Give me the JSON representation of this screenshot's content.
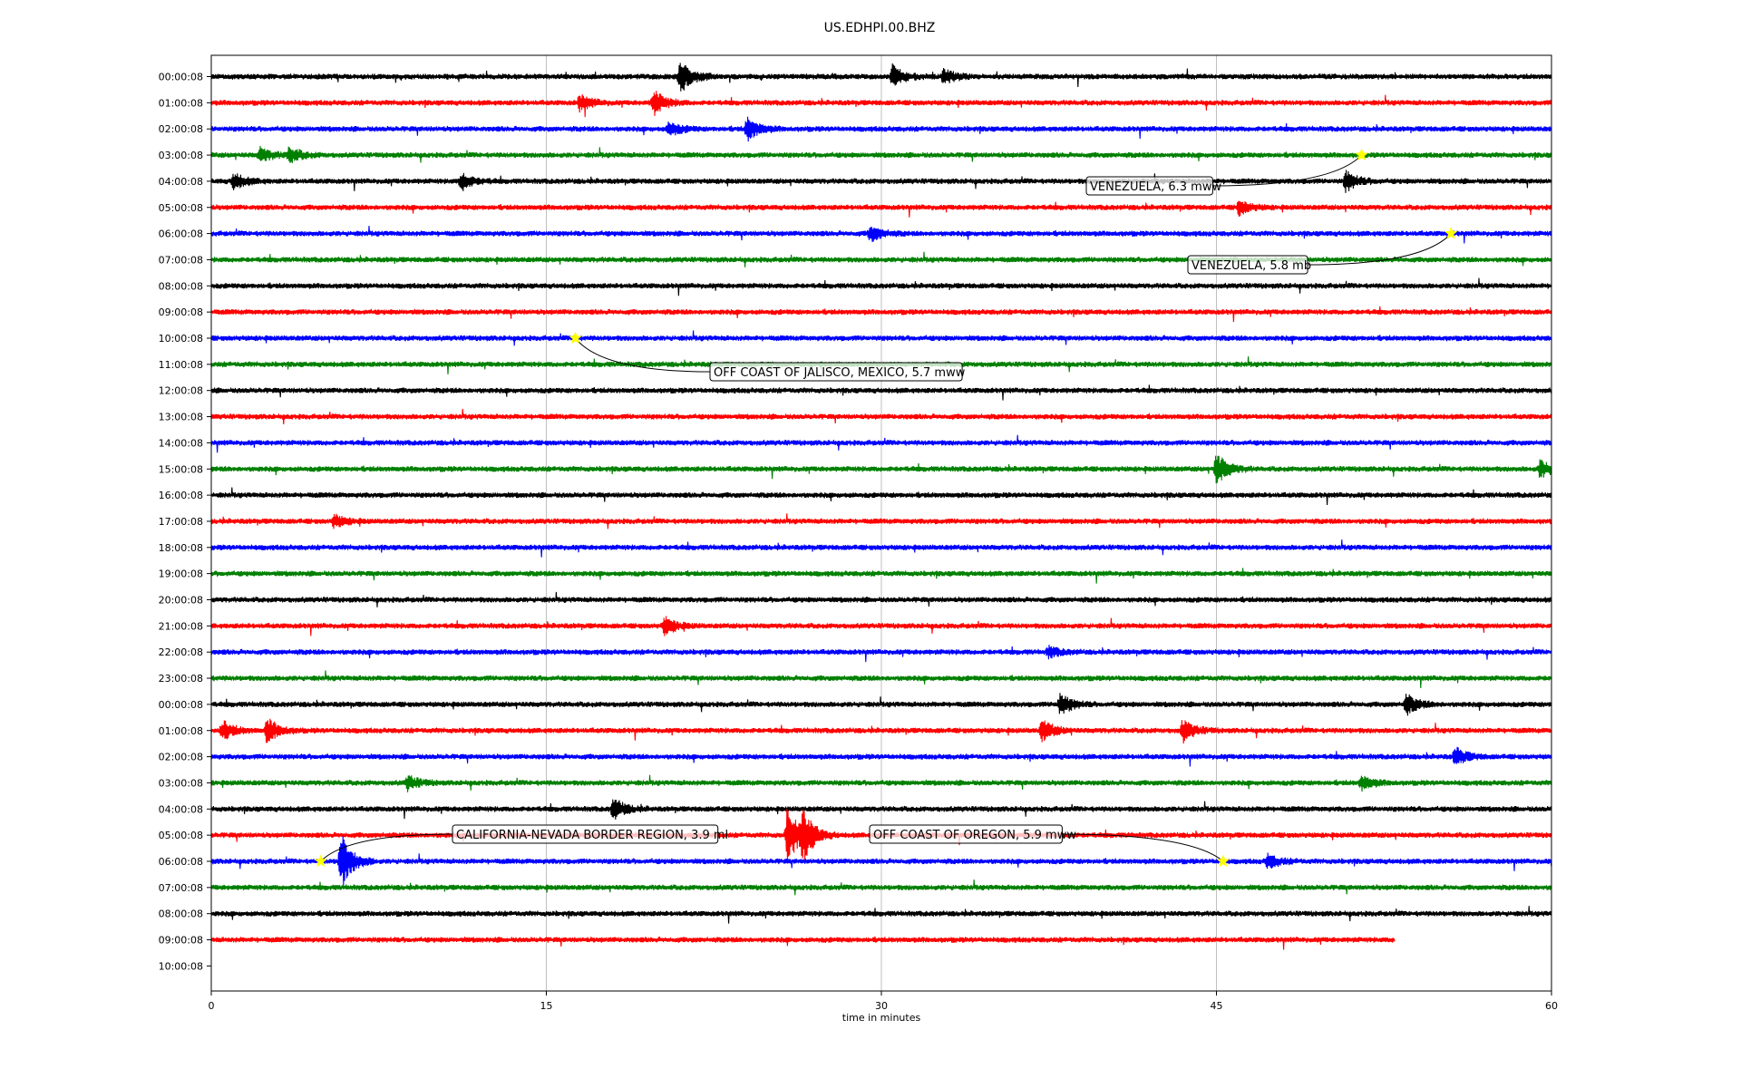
{
  "chart_data": {
    "type": "line",
    "title": "US.EDHPI.00.BHZ",
    "xlabel": "time in minutes",
    "ylabel": "",
    "xlim": [
      0,
      60
    ],
    "x_ticks": [
      "0",
      "15",
      "30",
      "45",
      "60"
    ],
    "x_tick_values": [
      0,
      15,
      30,
      45,
      60
    ],
    "grid": "vertical lines at x ticks",
    "line_colors": [
      "#000000",
      "#ff0000",
      "#0000ff",
      "#008000"
    ],
    "row_labels": [
      "00:00:08",
      "01:00:08",
      "02:00:08",
      "03:00:08",
      "04:00:08",
      "05:00:08",
      "06:00:08",
      "07:00:08",
      "08:00:08",
      "09:00:08",
      "10:00:08",
      "11:00:08",
      "12:00:08",
      "13:00:08",
      "14:00:08",
      "15:00:08",
      "16:00:08",
      "17:00:08",
      "18:00:08",
      "19:00:08",
      "20:00:08",
      "21:00:08",
      "22:00:08",
      "23:00:08",
      "00:00:08",
      "01:00:08",
      "02:00:08",
      "03:00:08",
      "04:00:08",
      "05:00:08",
      "06:00:08",
      "07:00:08",
      "08:00:08",
      "09:00:08",
      "10:00:08"
    ],
    "last_trace_end_minute": 53,
    "bursts": [
      {
        "row": 0,
        "minute": 21,
        "amplitude": 18
      },
      {
        "row": 0,
        "minute": 30.5,
        "amplitude": 12
      },
      {
        "row": 0,
        "minute": 32.8,
        "amplitude": 8
      },
      {
        "row": 1,
        "minute": 16.5,
        "amplitude": 9
      },
      {
        "row": 1,
        "minute": 19.8,
        "amplitude": 14
      },
      {
        "row": 2,
        "minute": 20.5,
        "amplitude": 8
      },
      {
        "row": 2,
        "minute": 24,
        "amplitude": 14
      },
      {
        "row": 3,
        "minute": 2.2,
        "amplitude": 8
      },
      {
        "row": 3,
        "minute": 3.5,
        "amplitude": 9
      },
      {
        "row": 4,
        "minute": 1,
        "amplitude": 9
      },
      {
        "row": 4,
        "minute": 11.2,
        "amplitude": 10
      },
      {
        "row": 4,
        "minute": 50.8,
        "amplitude": 11
      },
      {
        "row": 5,
        "minute": 46,
        "amplitude": 8
      },
      {
        "row": 6,
        "minute": 29.5,
        "amplitude": 9
      },
      {
        "row": 15,
        "minute": 45,
        "amplitude": 18
      },
      {
        "row": 15,
        "minute": 59.5,
        "amplitude": 10
      },
      {
        "row": 17,
        "minute": 5.5,
        "amplitude": 7
      },
      {
        "row": 21,
        "minute": 20.3,
        "amplitude": 10
      },
      {
        "row": 22,
        "minute": 37.5,
        "amplitude": 6
      },
      {
        "row": 24,
        "minute": 38,
        "amplitude": 12
      },
      {
        "row": 24,
        "minute": 53.5,
        "amplitude": 11
      },
      {
        "row": 25,
        "minute": 0.5,
        "amplitude": 11
      },
      {
        "row": 25,
        "minute": 2.5,
        "amplitude": 14
      },
      {
        "row": 25,
        "minute": 37.2,
        "amplitude": 12
      },
      {
        "row": 25,
        "minute": 43.5,
        "amplitude": 12
      },
      {
        "row": 26,
        "minute": 55.7,
        "amplitude": 10
      },
      {
        "row": 27,
        "minute": 8.8,
        "amplitude": 8
      },
      {
        "row": 27,
        "minute": 51.5,
        "amplitude": 8
      },
      {
        "row": 28,
        "minute": 18,
        "amplitude": 12
      },
      {
        "row": 29,
        "minute": 25.8,
        "amplitude": 32
      },
      {
        "row": 29,
        "minute": 26.5,
        "amplitude": 24
      },
      {
        "row": 30,
        "minute": 5.8,
        "amplitude": 32
      },
      {
        "row": 30,
        "minute": 47.3,
        "amplitude": 8
      }
    ],
    "events": [
      {
        "label": "VENEZUELA, 6.3 mww",
        "row": 3,
        "minute": 51.5
      },
      {
        "label": "VENEZUELA, 5.8 mb",
        "row": 6,
        "minute": 55.5
      },
      {
        "label": "OFF COAST OF JALISCO, MEXICO, 5.7 mww",
        "row": 10,
        "minute": 16.3
      },
      {
        "label": "CALIFORNIA-NEVADA BORDER REGION, 3.9 ml",
        "row": 30,
        "minute": 4.9
      },
      {
        "label": "OFF COAST OF OREGON, 5.9 mww",
        "row": 30,
        "minute": 45.3
      }
    ]
  }
}
